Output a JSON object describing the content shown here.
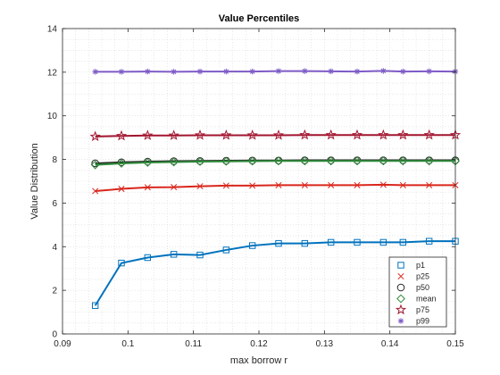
{
  "chart_data": {
    "type": "line",
    "title": "Value Percentiles",
    "xlabel": "max borrow r",
    "ylabel": "Value Distribution",
    "xlim": [
      0.09,
      0.15
    ],
    "ylim": [
      0,
      14
    ],
    "xticks": [
      "0.09",
      "0.1",
      "0.11",
      "0.12",
      "0.13",
      "0.14",
      "0.15"
    ],
    "xtick_values": [
      0.09,
      0.1,
      0.11,
      0.12,
      0.13,
      0.14,
      0.15
    ],
    "yticks": [
      "0",
      "2",
      "4",
      "6",
      "8",
      "10",
      "12",
      "14"
    ],
    "ytick_values": [
      0,
      2,
      4,
      6,
      8,
      10,
      12,
      14
    ],
    "grid": "minor dotted",
    "legend_position": "bottom-right",
    "x": [
      0.095,
      0.099,
      0.103,
      0.107,
      0.111,
      0.115,
      0.119,
      0.123,
      0.127,
      0.131,
      0.135,
      0.139,
      0.142,
      0.146,
      0.15
    ],
    "series": [
      {
        "name": "p1",
        "marker": "square",
        "color": "#0072BD",
        "values": [
          1.3,
          3.25,
          3.5,
          3.65,
          3.62,
          3.85,
          4.05,
          4.15,
          4.15,
          4.2,
          4.2,
          4.2,
          4.2,
          4.25,
          4.25
        ]
      },
      {
        "name": "p25",
        "marker": "x",
        "color": "#D9261C",
        "values": [
          6.55,
          6.65,
          6.72,
          6.73,
          6.77,
          6.8,
          6.8,
          6.82,
          6.82,
          6.82,
          6.82,
          6.84,
          6.82,
          6.82,
          6.82
        ]
      },
      {
        "name": "p50",
        "marker": "circle",
        "color": "#262626",
        "values": [
          7.82,
          7.87,
          7.9,
          7.92,
          7.93,
          7.94,
          7.95,
          7.95,
          7.96,
          7.96,
          7.96,
          7.96,
          7.96,
          7.96,
          7.96
        ]
      },
      {
        "name": "mean",
        "marker": "diamond",
        "color": "#2E8B3A",
        "values": [
          7.75,
          7.82,
          7.86,
          7.88,
          7.9,
          7.91,
          7.92,
          7.93,
          7.93,
          7.93,
          7.93,
          7.93,
          7.93,
          7.93,
          7.93
        ]
      },
      {
        "name": "p75",
        "marker": "pentagram",
        "color": "#A2142F",
        "values": [
          9.05,
          9.08,
          9.1,
          9.1,
          9.11,
          9.11,
          9.11,
          9.11,
          9.12,
          9.12,
          9.12,
          9.12,
          9.12,
          9.12,
          9.12
        ]
      },
      {
        "name": "p99",
        "marker": "asterisk",
        "color": "#7E5BC7",
        "values": [
          12.02,
          12.02,
          12.03,
          12.02,
          12.03,
          12.03,
          12.03,
          12.05,
          12.05,
          12.04,
          12.03,
          12.06,
          12.03,
          12.04,
          12.03
        ]
      }
    ]
  }
}
